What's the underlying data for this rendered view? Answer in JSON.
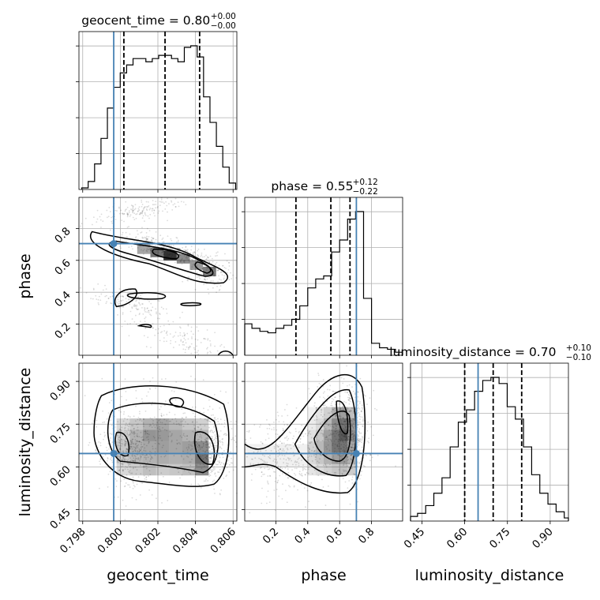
{
  "chart_data": {
    "type": "corner",
    "parameters": [
      "geocent_time",
      "phase",
      "luminosity_distance"
    ],
    "truths": {
      "geocent_time": 0.79965,
      "phase": 0.705,
      "luminosity_distance": 0.647
    },
    "titles": {
      "geocent_time": {
        "name": "geocent_time",
        "median": "0.80",
        "plus": "+0.00",
        "minus": "−0.00"
      },
      "phase": {
        "name": "phase",
        "median": "0.55",
        "plus": "+0.12",
        "minus": "−0.22"
      },
      "luminosity_distance": {
        "name": "luminosity_distance",
        "median": "0.70",
        "plus": "+0.10",
        "minus": "−0.10"
      }
    },
    "ranges": {
      "geocent_time": [
        0.7978,
        0.8062
      ],
      "phase": [
        0.005,
        0.995
      ],
      "luminosity_distance": [
        0.41,
        0.964
      ]
    },
    "ticks": {
      "geocent_time": [
        "0.798",
        "0.800",
        "0.802",
        "0.804",
        "0.806"
      ],
      "phase": [
        "0.2",
        "0.4",
        "0.6",
        "0.8"
      ],
      "luminosity_distance": [
        "0.45",
        "0.60",
        "0.75",
        "0.90"
      ]
    },
    "axis_labels": {
      "geocent_time": "geocent_time",
      "phase": "phase",
      "luminosity_distance": "luminosity_distance"
    },
    "quantiles": {
      "geocent_time": [
        0.80019,
        0.80238,
        0.80422
      ],
      "phase": [
        0.326,
        0.545,
        0.665
      ],
      "luminosity_distance": [
        0.6,
        0.7,
        0.8
      ]
    },
    "histograms": {
      "geocent_time": {
        "edges": [
          0.79795,
          0.798291,
          0.798632,
          0.798973,
          0.799314,
          0.799655,
          0.799996,
          0.800337,
          0.800678,
          0.801019,
          0.80136,
          0.801701,
          0.802042,
          0.802383,
          0.802724,
          0.803065,
          0.803406,
          0.803747,
          0.804088,
          0.804429,
          0.80477,
          0.805111,
          0.805452,
          0.805793,
          0.806134
        ],
        "counts": [
          1,
          5,
          16,
          32,
          51,
          64,
          73,
          78,
          82,
          82,
          80,
          82,
          84,
          84,
          82,
          80,
          89,
          90,
          83,
          58,
          42,
          27,
          14,
          4
        ]
      },
      "phase": {
        "edges": [
          0.0,
          0.05,
          0.1,
          0.15,
          0.2,
          0.25,
          0.3,
          0.35,
          0.4,
          0.45,
          0.5,
          0.55,
          0.6,
          0.65,
          0.7,
          0.75,
          0.8,
          0.85,
          0.9,
          0.95,
          1.0
        ],
        "counts": [
          21,
          18,
          16,
          15,
          18,
          20,
          24,
          33,
          45,
          51,
          53,
          69,
          77,
          91,
          96,
          38,
          8,
          5,
          4,
          2
        ]
      },
      "luminosity_distance": {
        "edges": [
          0.406,
          0.4346,
          0.4632,
          0.4918,
          0.5204,
          0.549,
          0.5776,
          0.6062,
          0.6348,
          0.6634,
          0.692,
          0.7206,
          0.7492,
          0.7778,
          0.8064,
          0.835,
          0.8636,
          0.8922,
          0.9208,
          0.9494,
          0.978
        ],
        "counts": [
          3,
          5,
          10,
          18,
          28,
          48,
          64,
          72,
          84,
          91,
          93,
          89,
          74,
          66,
          48,
          30,
          18,
          11,
          6,
          2
        ]
      }
    },
    "grid": true
  }
}
